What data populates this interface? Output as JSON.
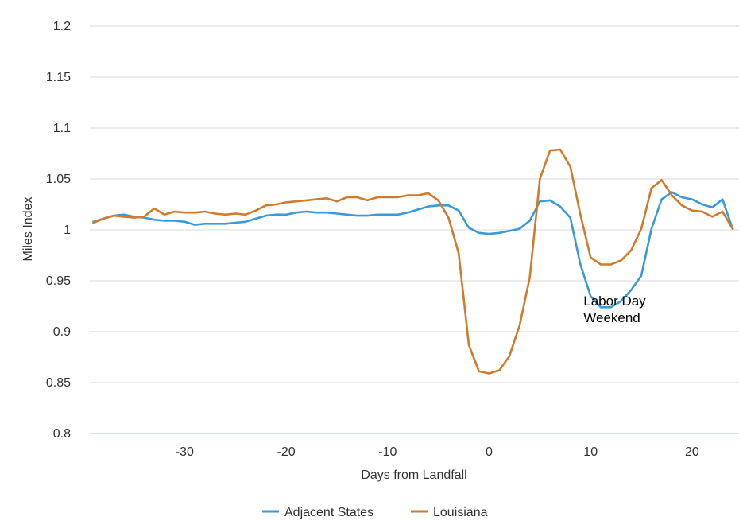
{
  "chart_data": {
    "type": "line",
    "title": "",
    "xlabel": "Days from Landfall",
    "ylabel": "Miles Index",
    "xlim": [
      -39,
      24
    ],
    "ylim": [
      0.8,
      1.2
    ],
    "y_ticks": [
      "0.8",
      "0.85",
      "0.9",
      "0.95",
      "1",
      "1.05",
      "1.1",
      "1.15",
      "1.2"
    ],
    "x_ticks": [
      "-30",
      "-20",
      "-10",
      "0",
      "10",
      "20"
    ],
    "grid": true,
    "legend_position": "bottom",
    "annotation": {
      "lines": [
        "Labor Day",
        "Weekend"
      ],
      "x": 9.3,
      "y": 0.915
    },
    "x": [
      -39,
      -38,
      -37,
      -36,
      -35,
      -34,
      -33,
      -32,
      -31,
      -30,
      -29,
      -28,
      -27,
      -26,
      -25,
      -24,
      -23,
      -22,
      -21,
      -20,
      -19,
      -18,
      -17,
      -16,
      -15,
      -14,
      -13,
      -12,
      -11,
      -10,
      -9,
      -8,
      -7,
      -6,
      -5,
      -4,
      -3,
      -2,
      -1,
      0,
      1,
      2,
      3,
      4,
      5,
      6,
      7,
      8,
      9,
      10,
      11,
      12,
      13,
      14,
      15,
      16,
      17,
      18,
      19,
      20,
      21,
      22,
      23,
      24
    ],
    "series": [
      {
        "name": "Adjacent States",
        "color": "#3a9ad9",
        "values": [
          1.008,
          1.011,
          1.014,
          1.015,
          1.013,
          1.012,
          1.01,
          1.009,
          1.009,
          1.008,
          1.005,
          1.006,
          1.006,
          1.006,
          1.007,
          1.008,
          1.011,
          1.014,
          1.015,
          1.015,
          1.017,
          1.018,
          1.017,
          1.017,
          1.016,
          1.015,
          1.014,
          1.014,
          1.015,
          1.015,
          1.015,
          1.017,
          1.02,
          1.023,
          1.024,
          1.024,
          1.019,
          1.002,
          0.997,
          0.996,
          0.997,
          0.999,
          1.001,
          1.009,
          1.028,
          1.029,
          1.023,
          1.012,
          0.966,
          0.935,
          0.924,
          0.924,
          0.93,
          0.941,
          0.955,
          1.001,
          1.03,
          1.037,
          1.032,
          1.03,
          1.025,
          1.022,
          1.03,
          1.001
        ]
      },
      {
        "name": "Louisiana",
        "color": "#d27a2c",
        "values": [
          1.007,
          1.011,
          1.014,
          1.013,
          1.012,
          1.013,
          1.021,
          1.015,
          1.018,
          1.017,
          1.017,
          1.018,
          1.016,
          1.015,
          1.016,
          1.015,
          1.019,
          1.024,
          1.025,
          1.027,
          1.028,
          1.029,
          1.03,
          1.031,
          1.028,
          1.032,
          1.032,
          1.029,
          1.032,
          1.032,
          1.032,
          1.034,
          1.034,
          1.036,
          1.029,
          1.012,
          0.977,
          0.887,
          0.861,
          0.859,
          0.862,
          0.876,
          0.906,
          0.953,
          1.05,
          1.078,
          1.079,
          1.062,
          1.015,
          0.973,
          0.966,
          0.966,
          0.97,
          0.98,
          1.001,
          1.041,
          1.049,
          1.034,
          1.024,
          1.019,
          1.018,
          1.013,
          1.018,
          1.001
        ]
      }
    ]
  }
}
